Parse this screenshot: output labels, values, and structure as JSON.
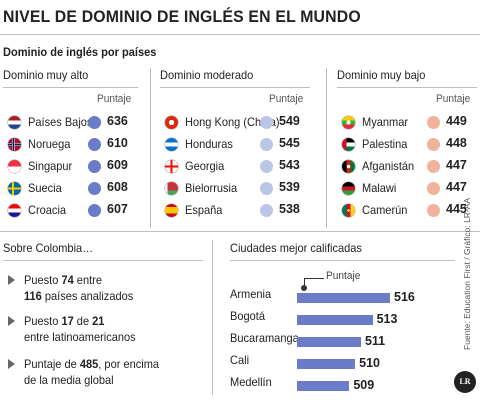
{
  "title": "NIVEL DE DOMINIO DE INGLÉS EN EL MUNDO",
  "subtitle": "Dominio de inglés por países",
  "score_header": "Puntaje",
  "dot_colors": {
    "high": "#6a7bc7",
    "moderate": "#b9c6e6",
    "low": "#f0b39a"
  },
  "bar_color": "#6a7bc7",
  "chart_data": [
    {
      "type": "table",
      "title": "Dominio muy alto",
      "rows": [
        {
          "country": "Países Bajos",
          "value": 636,
          "flag": "flag-netherlands"
        },
        {
          "country": "Noruega",
          "value": 610,
          "flag": "flag-norway"
        },
        {
          "country": "Singapur",
          "value": 609,
          "flag": "flag-singapore"
        },
        {
          "country": "Suecia",
          "value": 608,
          "flag": "flag-sweden"
        },
        {
          "country": "Croacia",
          "value": 607,
          "flag": "flag-croatia"
        }
      ]
    },
    {
      "type": "table",
      "title": "Dominio moderado",
      "rows": [
        {
          "country": "Hong Kong (China)",
          "value": 549,
          "flag": "flag-hong-kong"
        },
        {
          "country": "Honduras",
          "value": 545,
          "flag": "flag-honduras"
        },
        {
          "country": "Georgia",
          "value": 543,
          "flag": "flag-georgia"
        },
        {
          "country": "Bielorrusia",
          "value": 539,
          "flag": "flag-belarus"
        },
        {
          "country": "España",
          "value": 538,
          "flag": "flag-spain"
        }
      ]
    },
    {
      "type": "table",
      "title": "Dominio muy bajo",
      "rows": [
        {
          "country": "Myanmar",
          "value": 449,
          "flag": "flag-myanmar"
        },
        {
          "country": "Palestina",
          "value": 448,
          "flag": "flag-palestine"
        },
        {
          "country": "Afganistán",
          "value": 447,
          "flag": "flag-afghanistan"
        },
        {
          "country": "Malawi",
          "value": 447,
          "flag": "flag-malawi"
        },
        {
          "country": "Camerún",
          "value": 445,
          "flag": "flag-cameroon"
        }
      ]
    },
    {
      "type": "bar",
      "title": "Ciudades mejor calificadas",
      "legend": "Puntaje",
      "categories": [
        "Armenia",
        "Bogotá",
        "Bucaramanga",
        "Cali",
        "Medellín"
      ],
      "values": [
        516,
        513,
        511,
        510,
        509
      ]
    }
  ],
  "colombia": {
    "title": "Sobre Colombia…",
    "items": [
      {
        "pre": "Puesto ",
        "bold": "74",
        "mid": " entre",
        "line2_bold": "116",
        "line2": " países analizados"
      },
      {
        "pre": "Puesto ",
        "bold": "17",
        "mid": " de ",
        "bold2": "21",
        "line2": "entre latinoamericanos"
      },
      {
        "pre": "Puntaje de ",
        "bold": "485",
        "mid": ", por encima",
        "line2": "de la media global"
      }
    ]
  },
  "source": "Fuente: Education First / Gráfico: LR-AA",
  "logo": "LR"
}
